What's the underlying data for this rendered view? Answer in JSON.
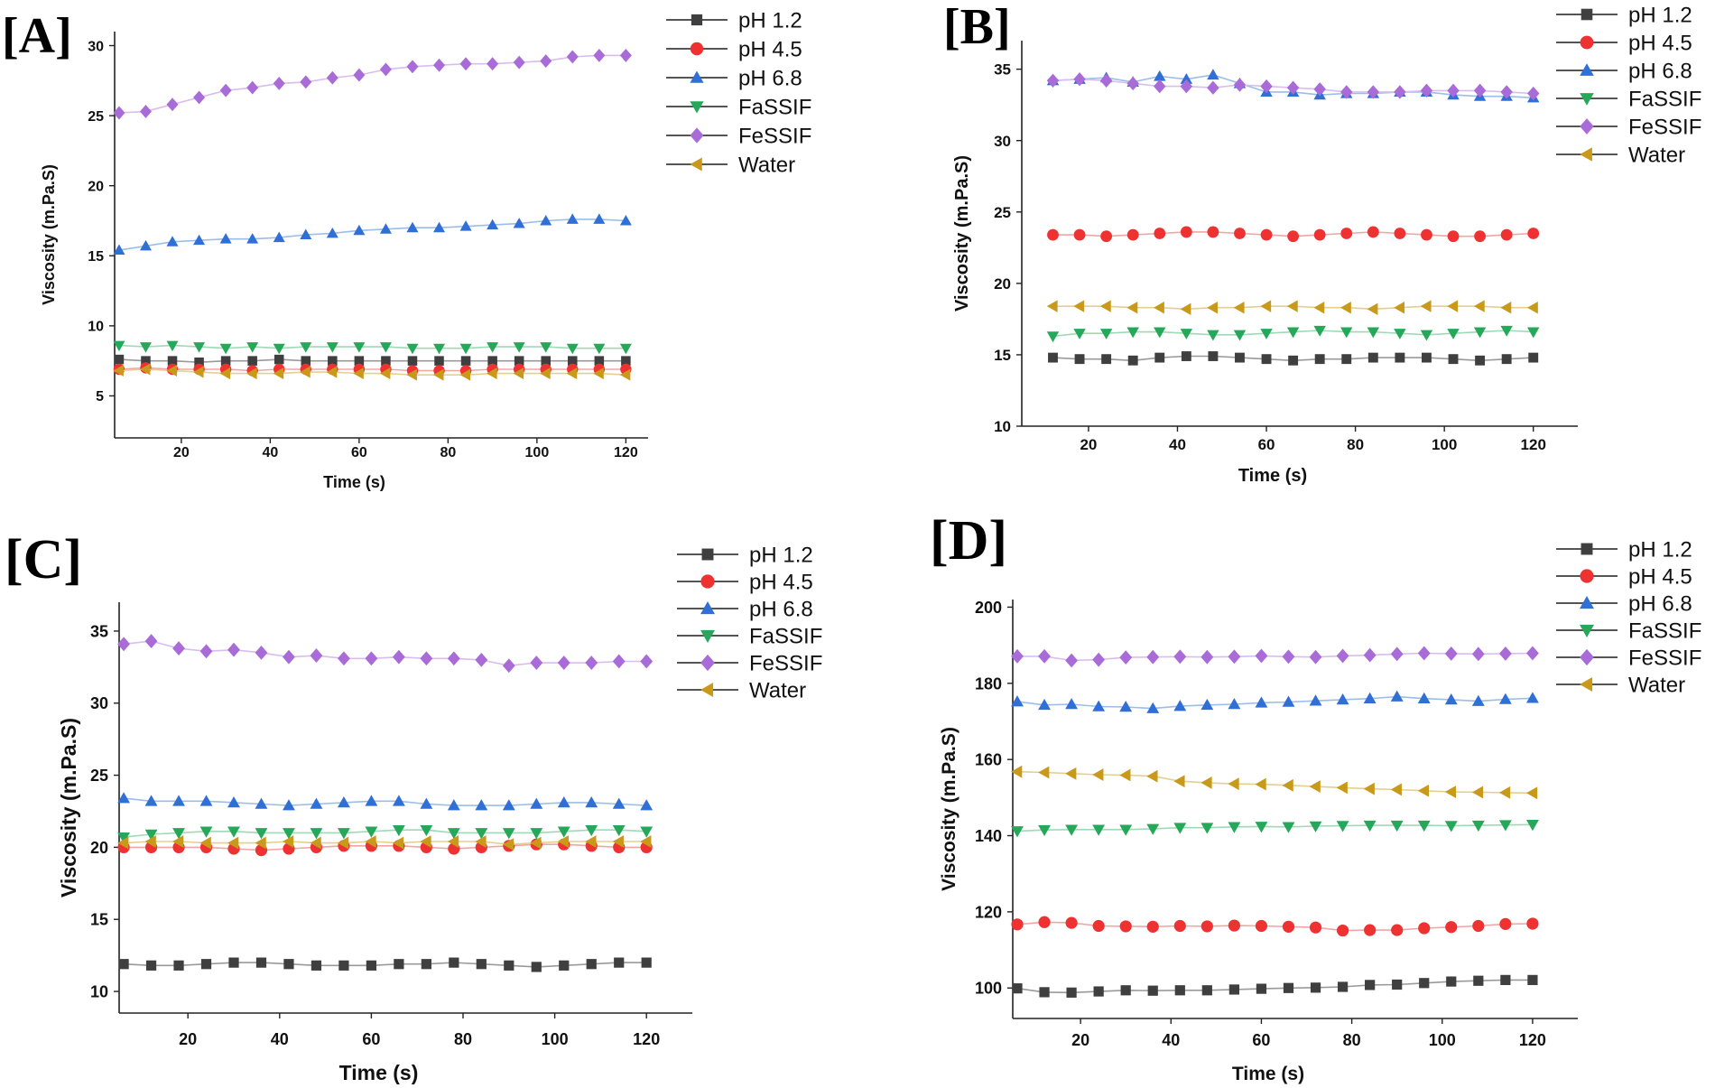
{
  "figure": {
    "marker_colors": {
      "pH 1.2": "#3f3f3f",
      "pH 4.5": "#ee3232",
      "pH 6.8": "#2f6fd6",
      "FaSSIF": "#26a85a",
      "FeSSIF": "#a96bd8",
      "Water": "#c99a1a"
    },
    "line_colors": {
      "pH 1.2": "#9a9a9a",
      "pH 4.5": "#f3a5a5",
      "pH 6.8": "#9bbde9",
      "FaSSIF": "#9fd9b5",
      "FeSSIF": "#d8bdf0",
      "Water": "#e5cf8f"
    },
    "marker_shapes": {
      "pH 1.2": "square",
      "pH 4.5": "circle",
      "pH 6.8": "triangle-up",
      "FaSSIF": "triangle-down",
      "FeSSIF": "diamond",
      "Water": "triangle-left"
    }
  },
  "chart_data": [
    {
      "panel": "[A]",
      "type": "line",
      "xlabel": "Time (s)",
      "ylabel": "Viscosity (m.Pa.S)",
      "xlim": [
        5,
        125
      ],
      "ylim": [
        2,
        31
      ],
      "xticks": [
        20,
        40,
        60,
        80,
        100,
        120
      ],
      "yticks": [
        5,
        10,
        15,
        20,
        25,
        30
      ],
      "legend_position": "top-right",
      "x": [
        6,
        12,
        18,
        24,
        30,
        36,
        42,
        48,
        54,
        60,
        66,
        72,
        78,
        84,
        90,
        96,
        102,
        108,
        114,
        120
      ],
      "series": [
        {
          "name": "pH 1.2",
          "values": [
            7.6,
            7.5,
            7.5,
            7.4,
            7.5,
            7.5,
            7.6,
            7.5,
            7.5,
            7.5,
            7.5,
            7.5,
            7.5,
            7.5,
            7.5,
            7.5,
            7.5,
            7.5,
            7.5,
            7.5
          ]
        },
        {
          "name": "pH 4.5",
          "values": [
            6.9,
            7.0,
            6.9,
            6.9,
            6.9,
            6.8,
            6.9,
            6.9,
            6.9,
            6.9,
            6.9,
            6.8,
            6.8,
            6.8,
            6.9,
            6.9,
            6.9,
            6.9,
            6.9,
            6.9
          ]
        },
        {
          "name": "pH 6.8",
          "values": [
            15.4,
            15.7,
            16.0,
            16.1,
            16.2,
            16.2,
            16.3,
            16.5,
            16.6,
            16.8,
            16.9,
            17.0,
            17.0,
            17.1,
            17.2,
            17.3,
            17.5,
            17.6,
            17.6,
            17.5
          ]
        },
        {
          "name": "FaSSIF",
          "values": [
            8.6,
            8.5,
            8.6,
            8.5,
            8.4,
            8.5,
            8.4,
            8.5,
            8.5,
            8.5,
            8.5,
            8.4,
            8.4,
            8.4,
            8.5,
            8.5,
            8.5,
            8.4,
            8.4,
            8.4
          ]
        },
        {
          "name": "FeSSIF",
          "values": [
            25.2,
            25.3,
            25.8,
            26.3,
            26.8,
            27.0,
            27.3,
            27.4,
            27.7,
            27.9,
            28.3,
            28.5,
            28.6,
            28.7,
            28.7,
            28.8,
            28.9,
            29.2,
            29.3,
            29.3
          ]
        },
        {
          "name": "Water",
          "values": [
            6.8,
            6.9,
            6.8,
            6.7,
            6.6,
            6.6,
            6.6,
            6.7,
            6.7,
            6.6,
            6.6,
            6.5,
            6.5,
            6.5,
            6.6,
            6.6,
            6.6,
            6.6,
            6.6,
            6.5
          ]
        }
      ]
    },
    {
      "panel": "[B]",
      "type": "line",
      "xlabel": "Time (s)",
      "ylabel": "Viscosity (m.Pa.S)",
      "xlim": [
        5,
        130
      ],
      "ylim": [
        10,
        37
      ],
      "xticks": [
        20,
        40,
        60,
        80,
        100,
        120
      ],
      "yticks": [
        10,
        15,
        20,
        25,
        30,
        35
      ],
      "legend_position": "top-right",
      "x": [
        12,
        18,
        24,
        30,
        36,
        42,
        48,
        54,
        60,
        66,
        72,
        78,
        84,
        90,
        96,
        102,
        108,
        114,
        120
      ],
      "series": [
        {
          "name": "pH 1.2",
          "values": [
            14.8,
            14.7,
            14.7,
            14.6,
            14.8,
            14.9,
            14.9,
            14.8,
            14.7,
            14.6,
            14.7,
            14.7,
            14.8,
            14.8,
            14.8,
            14.7,
            14.6,
            14.7,
            14.8
          ]
        },
        {
          "name": "pH 4.5",
          "values": [
            23.4,
            23.4,
            23.3,
            23.4,
            23.5,
            23.6,
            23.6,
            23.5,
            23.4,
            23.3,
            23.4,
            23.5,
            23.6,
            23.5,
            23.4,
            23.3,
            23.3,
            23.4,
            23.5
          ]
        },
        {
          "name": "pH 6.8",
          "values": [
            34.2,
            34.3,
            34.4,
            34.1,
            34.5,
            34.3,
            34.6,
            34.0,
            33.4,
            33.4,
            33.2,
            33.3,
            33.3,
            33.4,
            33.4,
            33.2,
            33.1,
            33.1,
            33.0
          ]
        },
        {
          "name": "FaSSIF",
          "values": [
            16.3,
            16.5,
            16.5,
            16.6,
            16.6,
            16.5,
            16.4,
            16.4,
            16.5,
            16.6,
            16.7,
            16.6,
            16.6,
            16.5,
            16.4,
            16.5,
            16.6,
            16.7,
            16.6
          ]
        },
        {
          "name": "FeSSIF",
          "values": [
            34.2,
            34.3,
            34.2,
            34.0,
            33.8,
            33.8,
            33.7,
            33.9,
            33.8,
            33.7,
            33.6,
            33.4,
            33.4,
            33.4,
            33.5,
            33.5,
            33.5,
            33.4,
            33.3
          ]
        },
        {
          "name": "Water",
          "values": [
            18.4,
            18.4,
            18.4,
            18.3,
            18.3,
            18.2,
            18.3,
            18.3,
            18.4,
            18.4,
            18.3,
            18.3,
            18.2,
            18.3,
            18.4,
            18.4,
            18.4,
            18.3,
            18.3
          ]
        }
      ]
    },
    {
      "panel": "[C]",
      "type": "line",
      "xlabel": "Time (s)",
      "ylabel": "Viscosity (m.Pa.S)",
      "xlim": [
        5,
        130
      ],
      "ylim": [
        8.5,
        37
      ],
      "xticks": [
        20,
        40,
        60,
        80,
        100,
        120
      ],
      "yticks": [
        10,
        15,
        20,
        25,
        30,
        35
      ],
      "legend_position": "top-right",
      "x": [
        6,
        12,
        18,
        24,
        30,
        36,
        42,
        48,
        54,
        60,
        66,
        72,
        78,
        84,
        90,
        96,
        102,
        108,
        114,
        120
      ],
      "series": [
        {
          "name": "pH 1.2",
          "values": [
            11.9,
            11.8,
            11.8,
            11.9,
            12.0,
            12.0,
            11.9,
            11.8,
            11.8,
            11.8,
            11.9,
            11.9,
            12.0,
            11.9,
            11.8,
            11.7,
            11.8,
            11.9,
            12.0,
            12.0
          ]
        },
        {
          "name": "pH 4.5",
          "values": [
            20.0,
            20.0,
            20.0,
            20.0,
            19.9,
            19.8,
            19.9,
            20.0,
            20.1,
            20.1,
            20.1,
            20.0,
            19.9,
            20.0,
            20.1,
            20.2,
            20.2,
            20.1,
            20.0,
            20.0
          ]
        },
        {
          "name": "pH 6.8",
          "values": [
            23.4,
            23.2,
            23.2,
            23.2,
            23.1,
            23.0,
            22.9,
            23.0,
            23.1,
            23.2,
            23.2,
            23.0,
            22.9,
            22.9,
            22.9,
            23.0,
            23.1,
            23.1,
            23.0,
            22.9
          ]
        },
        {
          "name": "FaSSIF",
          "values": [
            20.7,
            20.9,
            21.0,
            21.1,
            21.1,
            21.0,
            21.0,
            21.0,
            21.0,
            21.1,
            21.2,
            21.2,
            21.0,
            21.0,
            21.0,
            21.0,
            21.1,
            21.2,
            21.2,
            21.1
          ]
        },
        {
          "name": "FeSSIF",
          "values": [
            34.1,
            34.3,
            33.8,
            33.6,
            33.7,
            33.5,
            33.2,
            33.3,
            33.1,
            33.1,
            33.2,
            33.1,
            33.1,
            33.0,
            32.6,
            32.8,
            32.8,
            32.8,
            32.9,
            32.9
          ]
        },
        {
          "name": "Water",
          "values": [
            20.3,
            20.4,
            20.4,
            20.3,
            20.3,
            20.3,
            20.4,
            20.3,
            20.3,
            20.4,
            20.3,
            20.4,
            20.4,
            20.4,
            20.2,
            20.3,
            20.4,
            20.4,
            20.4,
            20.4
          ]
        }
      ]
    },
    {
      "panel": "[D]",
      "type": "line",
      "xlabel": "Time (s)",
      "ylabel": "Viscosity (m.Pa.S)",
      "xlim": [
        5,
        130
      ],
      "ylim": [
        92,
        202
      ],
      "xticks": [
        20,
        40,
        60,
        80,
        100,
        120
      ],
      "yticks": [
        100,
        120,
        140,
        160,
        180,
        200
      ],
      "legend_position": "top-right",
      "x": [
        6,
        12,
        18,
        24,
        30,
        36,
        42,
        48,
        54,
        60,
        66,
        72,
        78,
        84,
        90,
        96,
        102,
        108,
        114,
        120
      ],
      "series": [
        {
          "name": "pH 1.2",
          "values": [
            99.9,
            98.9,
            98.8,
            99.1,
            99.4,
            99.3,
            99.4,
            99.4,
            99.6,
            99.8,
            100.0,
            100.1,
            100.3,
            100.8,
            100.9,
            101.3,
            101.7,
            101.9,
            102.1,
            102.1
          ]
        },
        {
          "name": "pH 4.5",
          "values": [
            116.7,
            117.3,
            117.1,
            116.3,
            116.2,
            116.1,
            116.3,
            116.2,
            116.4,
            116.3,
            116.1,
            115.9,
            115.1,
            115.2,
            115.2,
            115.7,
            116.0,
            116.3,
            116.8,
            116.9
          ]
        },
        {
          "name": "pH 6.8",
          "values": [
            175.2,
            174.3,
            174.5,
            173.9,
            173.8,
            173.4,
            174.0,
            174.3,
            174.5,
            174.9,
            175.1,
            175.4,
            175.7,
            176.0,
            176.5,
            176.0,
            175.7,
            175.3,
            175.8,
            176.1
          ]
        },
        {
          "name": "FaSSIF",
          "values": [
            141.2,
            141.5,
            141.6,
            141.6,
            141.6,
            141.8,
            142.1,
            142.1,
            142.3,
            142.4,
            142.3,
            142.5,
            142.6,
            142.7,
            142.7,
            142.7,
            142.6,
            142.7,
            142.8,
            142.9
          ]
        },
        {
          "name": "FeSSIF",
          "values": [
            187.1,
            187.1,
            186.0,
            186.2,
            186.8,
            186.9,
            187.0,
            186.9,
            187.0,
            187.2,
            187.0,
            186.9,
            187.2,
            187.4,
            187.7,
            187.9,
            187.8,
            187.7,
            187.8,
            187.9
          ]
        },
        {
          "name": "Water",
          "values": [
            156.8,
            156.6,
            156.3,
            156.0,
            155.9,
            155.6,
            154.3,
            153.9,
            153.6,
            153.5,
            153.2,
            152.9,
            152.6,
            152.3,
            152.1,
            151.8,
            151.5,
            151.4,
            151.3,
            151.2
          ]
        }
      ]
    }
  ]
}
